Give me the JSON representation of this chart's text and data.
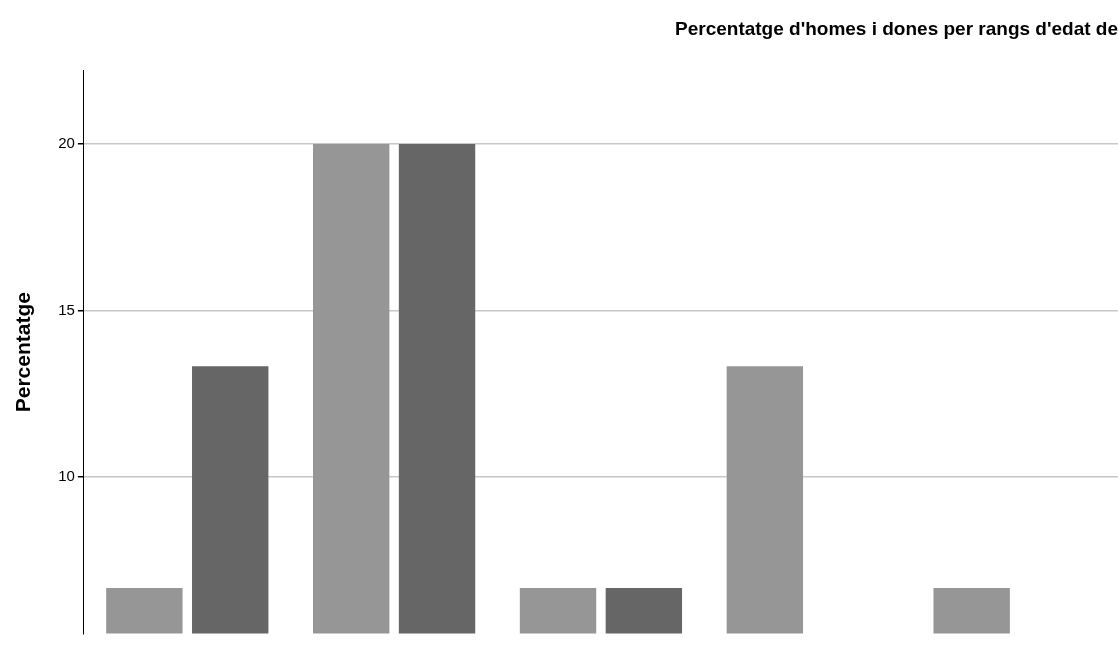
{
  "chart_data": {
    "type": "bar",
    "title": "Percentatge d'homes i dones per rangs d'edat de",
    "ylabel": "Percentatge",
    "categories": [
      null,
      null,
      null,
      null,
      null
    ],
    "series": [
      {
        "color": "#969696",
        "values": [
          6.67,
          20,
          6.67,
          13.33,
          6.67
        ]
      },
      {
        "color": "#666666",
        "values": [
          13.33,
          20,
          6.67,
          null,
          null
        ]
      }
    ],
    "ylim": [
      5.3,
      22.2
    ],
    "yticks": [
      10,
      15,
      20
    ],
    "grid": "y",
    "legend": false
  }
}
